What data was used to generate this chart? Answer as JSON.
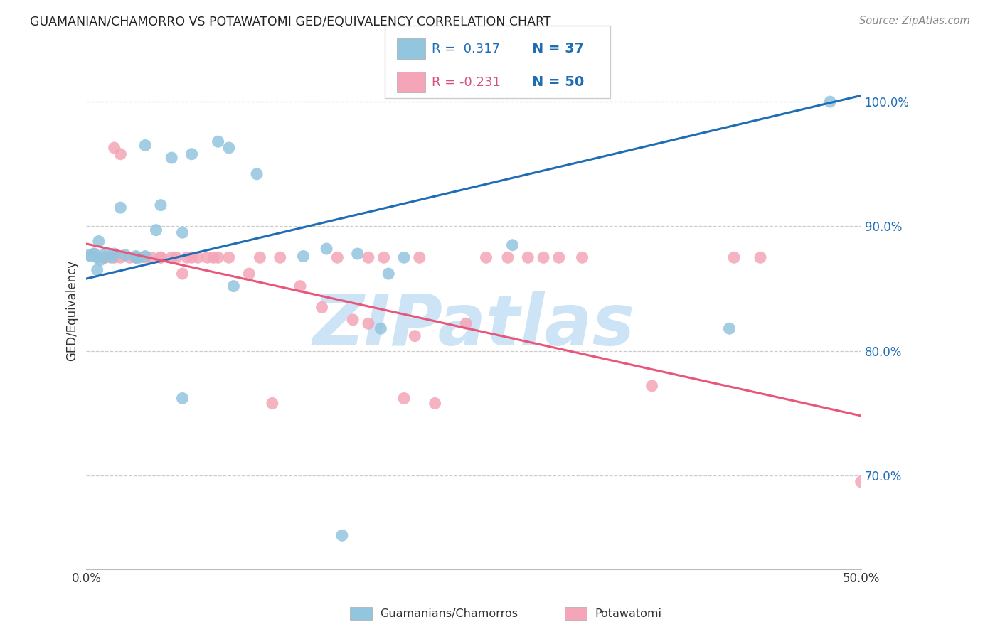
{
  "title": "GUAMANIAN/CHAMORRO VS POTAWATOMI GED/EQUIVALENCY CORRELATION CHART",
  "source": "Source: ZipAtlas.com",
  "ylabel": "GED/Equivalency",
  "ytick_labels": [
    "100.0%",
    "90.0%",
    "80.0%",
    "70.0%"
  ],
  "ytick_values": [
    1.0,
    0.9,
    0.8,
    0.7
  ],
  "xlim": [
    0.0,
    0.5
  ],
  "ylim": [
    0.625,
    1.04
  ],
  "legend_blue_r": "0.317",
  "legend_blue_n": "37",
  "legend_pink_r": "-0.231",
  "legend_pink_n": "50",
  "legend_label_blue": "Guamanians/Chamorros",
  "legend_label_pink": "Potawatomi",
  "color_blue": "#92c5de",
  "color_pink": "#f4a6b8",
  "color_blue_line": "#1f6db5",
  "color_pink_line": "#e8567a",
  "color_title": "#222222",
  "color_axis_text": "#1f6db5",
  "color_r_blue": "#1f6db5",
  "color_r_pink": "#d45080",
  "watermark_text": "ZIPatlas",
  "watermark_color": "#cce4f5",
  "blue_scatter_x": [
    0.038,
    0.055,
    0.022,
    0.008,
    0.005,
    0.012,
    0.007,
    0.003,
    0.002,
    0.016,
    0.009,
    0.007,
    0.018,
    0.025,
    0.032,
    0.045,
    0.048,
    0.038,
    0.034,
    0.032,
    0.068,
    0.085,
    0.092,
    0.11,
    0.062,
    0.14,
    0.175,
    0.155,
    0.062,
    0.095,
    0.19,
    0.205,
    0.275,
    0.195,
    0.165,
    0.415,
    0.48
  ],
  "blue_scatter_y": [
    0.965,
    0.955,
    0.915,
    0.888,
    0.878,
    0.878,
    0.875,
    0.876,
    0.877,
    0.875,
    0.873,
    0.865,
    0.878,
    0.877,
    0.876,
    0.897,
    0.917,
    0.876,
    0.875,
    0.875,
    0.958,
    0.968,
    0.963,
    0.942,
    0.895,
    0.876,
    0.878,
    0.882,
    0.762,
    0.852,
    0.818,
    0.875,
    0.885,
    0.862,
    0.652,
    0.818,
    1.0
  ],
  "pink_scatter_x": [
    0.005,
    0.012,
    0.018,
    0.022,
    0.028,
    0.032,
    0.012,
    0.018,
    0.042,
    0.055,
    0.062,
    0.068,
    0.072,
    0.078,
    0.085,
    0.038,
    0.048,
    0.022,
    0.032,
    0.058,
    0.065,
    0.082,
    0.092,
    0.105,
    0.112,
    0.125,
    0.138,
    0.152,
    0.162,
    0.172,
    0.182,
    0.192,
    0.205,
    0.215,
    0.225,
    0.12,
    0.048,
    0.245,
    0.258,
    0.272,
    0.285,
    0.295,
    0.305,
    0.32,
    0.182,
    0.212,
    0.365,
    0.418,
    0.435,
    0.5
  ],
  "pink_scatter_y": [
    0.878,
    0.875,
    0.963,
    0.958,
    0.875,
    0.875,
    0.875,
    0.875,
    0.875,
    0.875,
    0.862,
    0.875,
    0.875,
    0.875,
    0.875,
    0.875,
    0.875,
    0.875,
    0.875,
    0.875,
    0.875,
    0.875,
    0.875,
    0.862,
    0.875,
    0.875,
    0.852,
    0.835,
    0.875,
    0.825,
    0.875,
    0.875,
    0.762,
    0.875,
    0.758,
    0.758,
    0.875,
    0.822,
    0.875,
    0.875,
    0.875,
    0.875,
    0.875,
    0.875,
    0.822,
    0.812,
    0.772,
    0.875,
    0.875,
    0.695
  ],
  "blue_line_x0": 0.0,
  "blue_line_x1": 0.5,
  "blue_line_y0": 0.858,
  "blue_line_y1": 1.005,
  "pink_line_x0": 0.0,
  "pink_line_x1": 0.5,
  "pink_line_y0": 0.886,
  "pink_line_y1": 0.748
}
